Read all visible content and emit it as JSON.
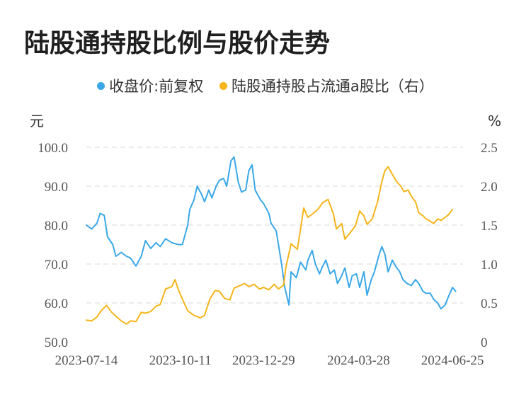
{
  "title": "陆股通持股比例与股价走势",
  "colors": {
    "price": "#3aa8e8",
    "ratio": "#f5b51b",
    "grid": "#e6e6e6"
  },
  "chart_data": {
    "type": "line",
    "legend_position": "top-center",
    "grid": true,
    "y_left_unit": "元",
    "y_right_unit": "%",
    "y_left_ticks": [
      "100.0",
      "90.0",
      "80.0",
      "70.0",
      "60.0",
      "50.0"
    ],
    "y_right_ticks": [
      "2.5",
      "2.0",
      "1.5",
      "1.0",
      "0.5",
      "0"
    ],
    "ylim_left": [
      50,
      100
    ],
    "ylim_right": [
      0,
      2.5
    ],
    "x_ticks": [
      "2023-07-14",
      "2023-10-11",
      "2023-12-29",
      "2024-03-28",
      "2024-06-25"
    ],
    "x_range": [
      "2023-07-14",
      "2024-07-05"
    ],
    "series": [
      {
        "name": "收盘价:前复权",
        "axis": "left",
        "points": [
          [
            "2023-07-14",
            80.0
          ],
          [
            "2023-07-19",
            79.0
          ],
          [
            "2023-07-24",
            80.5
          ],
          [
            "2023-07-27",
            83.0
          ],
          [
            "2023-07-31",
            82.5
          ],
          [
            "2023-08-03",
            77.0
          ],
          [
            "2023-08-08",
            75.0
          ],
          [
            "2023-08-11",
            72.0
          ],
          [
            "2023-08-16",
            73.0
          ],
          [
            "2023-08-21",
            72.0
          ],
          [
            "2023-08-25",
            71.5
          ],
          [
            "2023-08-30",
            69.5
          ],
          [
            "2023-09-04",
            72.0
          ],
          [
            "2023-09-08",
            76.0
          ],
          [
            "2023-09-13",
            74.0
          ],
          [
            "2023-09-18",
            75.5
          ],
          [
            "2023-09-22",
            74.5
          ],
          [
            "2023-09-27",
            76.5
          ],
          [
            "2023-10-03",
            75.5
          ],
          [
            "2023-10-09",
            75.0
          ],
          [
            "2023-10-13",
            75.0
          ],
          [
            "2023-10-18",
            80.0
          ],
          [
            "2023-10-20",
            84.0
          ],
          [
            "2023-10-24",
            86.5
          ],
          [
            "2023-10-27",
            90.0
          ],
          [
            "2023-10-31",
            88.0
          ],
          [
            "2023-11-03",
            86.0
          ],
          [
            "2023-11-07",
            89.0
          ],
          [
            "2023-11-10",
            87.0
          ],
          [
            "2023-11-14",
            90.0
          ],
          [
            "2023-11-17",
            91.5
          ],
          [
            "2023-11-21",
            92.0
          ],
          [
            "2023-11-24",
            90.0
          ],
          [
            "2023-11-28",
            96.5
          ],
          [
            "2023-12-01",
            97.5
          ],
          [
            "2023-12-05",
            91.0
          ],
          [
            "2023-12-08",
            88.5
          ],
          [
            "2023-12-12",
            89.0
          ],
          [
            "2023-12-15",
            94.0
          ],
          [
            "2023-12-18",
            95.5
          ],
          [
            "2023-12-21",
            89.0
          ],
          [
            "2023-12-26",
            86.5
          ],
          [
            "2023-12-29",
            85.5
          ],
          [
            "2024-01-03",
            83.0
          ],
          [
            "2024-01-05",
            80.5
          ],
          [
            "2024-01-10",
            78.5
          ],
          [
            "2024-01-15",
            70.0
          ],
          [
            "2024-01-18",
            64.0
          ],
          [
            "2024-01-22",
            59.5
          ],
          [
            "2024-01-24",
            68.0
          ],
          [
            "2024-01-29",
            66.5
          ],
          [
            "2024-02-02",
            70.5
          ],
          [
            "2024-02-07",
            68.5
          ],
          [
            "2024-02-09",
            71.0
          ],
          [
            "2024-02-13",
            73.5
          ],
          [
            "2024-02-16",
            70.0
          ],
          [
            "2024-02-20",
            67.5
          ],
          [
            "2024-02-23",
            69.5
          ],
          [
            "2024-02-26",
            71.0
          ],
          [
            "2024-03-01",
            67.5
          ],
          [
            "2024-03-05",
            68.5
          ],
          [
            "2024-03-08",
            65.0
          ],
          [
            "2024-03-12",
            67.0
          ],
          [
            "2024-03-15",
            69.0
          ],
          [
            "2024-03-19",
            64.0
          ],
          [
            "2024-03-22",
            67.0
          ],
          [
            "2024-03-26",
            67.5
          ],
          [
            "2024-03-29",
            64.0
          ],
          [
            "2024-04-02",
            68.0
          ],
          [
            "2024-04-05",
            62.0
          ],
          [
            "2024-04-09",
            66.0
          ],
          [
            "2024-04-12",
            68.0
          ],
          [
            "2024-04-16",
            72.0
          ],
          [
            "2024-04-19",
            74.5
          ],
          [
            "2024-04-22",
            72.5
          ],
          [
            "2024-04-25",
            68.0
          ],
          [
            "2024-04-29",
            71.0
          ],
          [
            "2024-05-02",
            69.5
          ],
          [
            "2024-05-06",
            68.0
          ],
          [
            "2024-05-09",
            66.0
          ],
          [
            "2024-05-13",
            65.0
          ],
          [
            "2024-05-17",
            64.5
          ],
          [
            "2024-05-21",
            66.0
          ],
          [
            "2024-05-24",
            65.0
          ],
          [
            "2024-05-28",
            63.0
          ],
          [
            "2024-05-31",
            62.5
          ],
          [
            "2024-06-04",
            62.5
          ],
          [
            "2024-06-07",
            61.0
          ],
          [
            "2024-06-11",
            60.0
          ],
          [
            "2024-06-14",
            58.5
          ],
          [
            "2024-06-18",
            59.5
          ],
          [
            "2024-06-21",
            61.5
          ],
          [
            "2024-06-25",
            64.0
          ],
          [
            "2024-06-28",
            63.0
          ]
        ]
      },
      {
        "name": "陆股通持股占流通a股比（右）",
        "axis": "right",
        "points": [
          [
            "2023-07-14",
            0.28
          ],
          [
            "2023-07-19",
            0.27
          ],
          [
            "2023-07-24",
            0.32
          ],
          [
            "2023-07-28",
            0.4
          ],
          [
            "2023-08-02",
            0.47
          ],
          [
            "2023-08-07",
            0.38
          ],
          [
            "2023-08-11",
            0.33
          ],
          [
            "2023-08-16",
            0.27
          ],
          [
            "2023-08-21",
            0.23
          ],
          [
            "2023-08-25",
            0.27
          ],
          [
            "2023-08-30",
            0.26
          ],
          [
            "2023-09-04",
            0.38
          ],
          [
            "2023-09-08",
            0.37
          ],
          [
            "2023-09-13",
            0.39
          ],
          [
            "2023-09-18",
            0.46
          ],
          [
            "2023-09-22",
            0.48
          ],
          [
            "2023-09-27",
            0.68
          ],
          [
            "2023-10-03",
            0.71
          ],
          [
            "2023-10-06",
            0.8
          ],
          [
            "2023-10-09",
            0.68
          ],
          [
            "2023-10-13",
            0.55
          ],
          [
            "2023-10-18",
            0.4
          ],
          [
            "2023-10-24",
            0.34
          ],
          [
            "2023-10-30",
            0.31
          ],
          [
            "2023-11-03",
            0.34
          ],
          [
            "2023-11-08",
            0.55
          ],
          [
            "2023-11-13",
            0.66
          ],
          [
            "2023-11-17",
            0.65
          ],
          [
            "2023-11-22",
            0.56
          ],
          [
            "2023-11-27",
            0.54
          ],
          [
            "2023-12-01",
            0.69
          ],
          [
            "2023-12-06",
            0.72
          ],
          [
            "2023-12-11",
            0.75
          ],
          [
            "2023-12-15",
            0.71
          ],
          [
            "2023-12-20",
            0.74
          ],
          [
            "2023-12-25",
            0.68
          ],
          [
            "2023-12-29",
            0.7
          ],
          [
            "2024-01-03",
            0.67
          ],
          [
            "2024-01-08",
            0.74
          ],
          [
            "2024-01-12",
            0.68
          ],
          [
            "2024-01-17",
            0.73
          ],
          [
            "2024-01-19",
            0.95
          ],
          [
            "2024-01-24",
            1.26
          ],
          [
            "2024-01-30",
            1.19
          ],
          [
            "2024-02-02",
            1.45
          ],
          [
            "2024-02-05",
            1.72
          ],
          [
            "2024-02-09",
            1.6
          ],
          [
            "2024-02-14",
            1.65
          ],
          [
            "2024-02-19",
            1.71
          ],
          [
            "2024-02-23",
            1.79
          ],
          [
            "2024-02-28",
            1.83
          ],
          [
            "2024-03-04",
            1.65
          ],
          [
            "2024-03-07",
            1.45
          ],
          [
            "2024-03-12",
            1.52
          ],
          [
            "2024-03-15",
            1.32
          ],
          [
            "2024-03-20",
            1.4
          ],
          [
            "2024-03-25",
            1.49
          ],
          [
            "2024-03-29",
            1.68
          ],
          [
            "2024-04-02",
            1.62
          ],
          [
            "2024-04-05",
            1.51
          ],
          [
            "2024-04-10",
            1.58
          ],
          [
            "2024-04-15",
            1.8
          ],
          [
            "2024-04-19",
            2.06
          ],
          [
            "2024-04-22",
            2.2
          ],
          [
            "2024-04-25",
            2.25
          ],
          [
            "2024-04-29",
            2.15
          ],
          [
            "2024-05-03",
            2.06
          ],
          [
            "2024-05-07",
            2.0
          ],
          [
            "2024-05-10",
            1.93
          ],
          [
            "2024-05-14",
            1.95
          ],
          [
            "2024-05-17",
            1.87
          ],
          [
            "2024-05-21",
            1.8
          ],
          [
            "2024-05-24",
            1.66
          ],
          [
            "2024-05-28",
            1.62
          ],
          [
            "2024-05-31",
            1.58
          ],
          [
            "2024-06-04",
            1.55
          ],
          [
            "2024-06-07",
            1.52
          ],
          [
            "2024-06-11",
            1.58
          ],
          [
            "2024-06-14",
            1.56
          ],
          [
            "2024-06-18",
            1.6
          ],
          [
            "2024-06-21",
            1.63
          ],
          [
            "2024-06-25",
            1.7
          ]
        ]
      }
    ]
  }
}
